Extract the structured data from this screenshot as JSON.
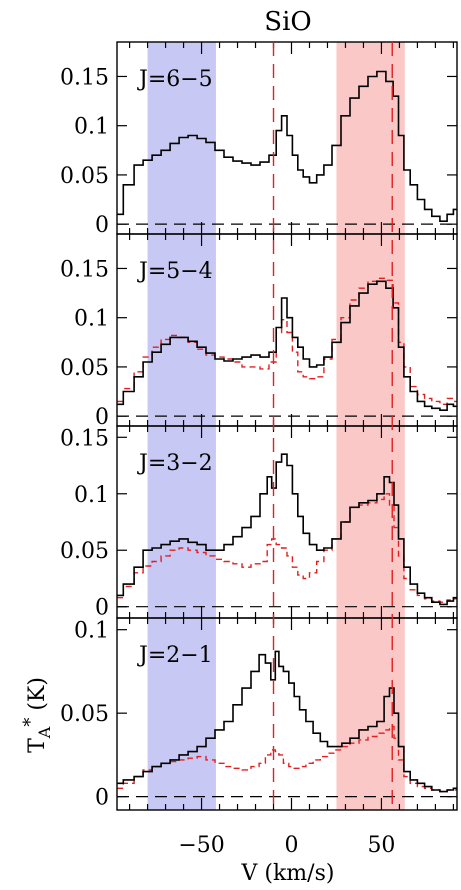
{
  "chart_data": {
    "type": "line",
    "title": "SiO",
    "xlabel": "V (km/s)",
    "ylabel_main": "T",
    "ylabel_sub": "A",
    "ylabel_sup": "*",
    "ylabel_unit": " (K)",
    "xlim": [
      -97,
      92
    ],
    "x_ticks": [
      -50,
      0,
      50
    ],
    "x_tick_labels": [
      "−50",
      "0",
      "50"
    ],
    "colors": {
      "black_series": "#000000",
      "red_series": "#e02020",
      "blue_band": "#c8c8f4",
      "red_band": "#fbc8c8",
      "vline": "#e02020",
      "baseline": "#000000"
    },
    "bands": [
      {
        "name": "blue-wing",
        "x": [
          -80,
          -42
        ],
        "color": "#c8c8f4"
      },
      {
        "name": "red-wing",
        "x": [
          25,
          63
        ],
        "color": "#fbc8c8"
      }
    ],
    "vlines": [
      -10,
      56
    ],
    "panels": [
      {
        "label": "J=6−5",
        "ylim": [
          -0.01,
          0.185
        ],
        "y_ticks": [
          0,
          0.05,
          0.1,
          0.15
        ],
        "y_tick_labels": [
          "0",
          "0.05",
          "0.1",
          "0.15"
        ],
        "black": {
          "x": [
            -97,
            -90,
            -85,
            -80,
            -75,
            -70,
            -65,
            -60,
            -55,
            -50,
            -45,
            -40,
            -35,
            -30,
            -25,
            -20,
            -15,
            -10,
            -7,
            -4,
            -1,
            2,
            5,
            8,
            12,
            16,
            20,
            25,
            30,
            35,
            40,
            45,
            50,
            55,
            58,
            61,
            64,
            68,
            72,
            76,
            80,
            85,
            88,
            92
          ],
          "y": [
            0.01,
            0.04,
            0.06,
            0.065,
            0.07,
            0.075,
            0.082,
            0.088,
            0.09,
            0.087,
            0.083,
            0.075,
            0.068,
            0.064,
            0.062,
            0.06,
            0.063,
            0.07,
            0.095,
            0.11,
            0.09,
            0.07,
            0.055,
            0.048,
            0.042,
            0.05,
            0.06,
            0.08,
            0.11,
            0.128,
            0.14,
            0.15,
            0.155,
            0.145,
            0.13,
            0.09,
            0.055,
            0.04,
            0.025,
            0.015,
            0.008,
            0.003,
            0.01,
            0.015
          ]
        }
      },
      {
        "label": "J=5−4",
        "ylim": [
          -0.01,
          0.185
        ],
        "y_ticks": [
          0,
          0.05,
          0.1,
          0.15
        ],
        "y_tick_labels": [
          "0",
          "0.05",
          "0.1",
          "0.15"
        ],
        "black": {
          "x": [
            -97,
            -90,
            -85,
            -80,
            -75,
            -70,
            -65,
            -60,
            -55,
            -50,
            -45,
            -40,
            -35,
            -30,
            -25,
            -20,
            -15,
            -10,
            -7,
            -4,
            -1,
            2,
            5,
            8,
            12,
            16,
            20,
            25,
            30,
            35,
            40,
            45,
            50,
            55,
            58,
            61,
            64,
            68,
            72,
            76,
            80,
            85,
            88,
            92
          ],
          "y": [
            0.012,
            0.025,
            0.04,
            0.055,
            0.065,
            0.073,
            0.08,
            0.08,
            0.076,
            0.07,
            0.064,
            0.058,
            0.056,
            0.058,
            0.06,
            0.062,
            0.06,
            0.065,
            0.09,
            0.12,
            0.1,
            0.08,
            0.07,
            0.058,
            0.05,
            0.052,
            0.06,
            0.075,
            0.095,
            0.112,
            0.125,
            0.134,
            0.137,
            0.13,
            0.11,
            0.07,
            0.04,
            0.025,
            0.015,
            0.01,
            0.008,
            0.006,
            0.012,
            0.01
          ]
        },
        "red": {
          "x": [
            -97,
            -90,
            -85,
            -80,
            -75,
            -70,
            -65,
            -60,
            -55,
            -50,
            -45,
            -40,
            -35,
            -30,
            -25,
            -20,
            -15,
            -10,
            -7,
            -4,
            -1,
            2,
            5,
            8,
            12,
            16,
            20,
            25,
            30,
            35,
            40,
            45,
            50,
            55,
            58,
            61,
            64,
            68,
            72,
            76,
            80,
            85,
            88,
            92
          ],
          "y": [
            0.015,
            0.028,
            0.045,
            0.06,
            0.07,
            0.078,
            0.082,
            0.08,
            0.075,
            0.068,
            0.062,
            0.06,
            0.058,
            0.055,
            0.05,
            0.05,
            0.048,
            0.055,
            0.085,
            0.098,
            0.085,
            0.065,
            0.045,
            0.04,
            0.038,
            0.04,
            0.058,
            0.078,
            0.1,
            0.118,
            0.13,
            0.137,
            0.14,
            0.138,
            0.115,
            0.075,
            0.05,
            0.03,
            0.022,
            0.018,
            0.015,
            0.012,
            0.018,
            0.015
          ]
        }
      },
      {
        "label": "J=3−2",
        "ylim": [
          -0.01,
          0.16
        ],
        "y_ticks": [
          0,
          0.05,
          0.1,
          0.15
        ],
        "y_tick_labels": [
          "0",
          "0.05",
          "0.1",
          "0.15"
        ],
        "black": {
          "x": [
            -97,
            -90,
            -85,
            -80,
            -75,
            -70,
            -65,
            -60,
            -55,
            -50,
            -45,
            -40,
            -35,
            -30,
            -25,
            -20,
            -15,
            -12,
            -10,
            -7,
            -4,
            -1,
            2,
            5,
            8,
            12,
            16,
            20,
            25,
            30,
            35,
            40,
            45,
            50,
            53,
            56,
            58,
            61,
            64,
            68,
            72,
            76,
            80,
            85,
            88,
            92
          ],
          "y": [
            0.01,
            0.02,
            0.035,
            0.05,
            0.052,
            0.055,
            0.058,
            0.06,
            0.057,
            0.055,
            0.05,
            0.05,
            0.055,
            0.062,
            0.07,
            0.08,
            0.1,
            0.115,
            0.105,
            0.128,
            0.135,
            0.125,
            0.1,
            0.08,
            0.065,
            0.055,
            0.05,
            0.052,
            0.06,
            0.075,
            0.088,
            0.092,
            0.094,
            0.1,
            0.115,
            0.11,
            0.09,
            0.06,
            0.035,
            0.02,
            0.012,
            0.008,
            0.004,
            0.002,
            0.005,
            0.008
          ]
        },
        "red": {
          "x": [
            -97,
            -90,
            -85,
            -80,
            -75,
            -70,
            -65,
            -60,
            -55,
            -50,
            -45,
            -40,
            -35,
            -30,
            -25,
            -20,
            -15,
            -12,
            -10,
            -7,
            -4,
            -1,
            2,
            5,
            8,
            12,
            16,
            20,
            25,
            30,
            35,
            40,
            45,
            50,
            53,
            56,
            58,
            61,
            64,
            68,
            72,
            76,
            80,
            85,
            88,
            92
          ],
          "y": [
            0.008,
            0.018,
            0.03,
            0.036,
            0.04,
            0.045,
            0.05,
            0.052,
            0.05,
            0.048,
            0.045,
            0.042,
            0.04,
            0.038,
            0.035,
            0.038,
            0.04,
            0.055,
            0.06,
            0.055,
            0.052,
            0.045,
            0.035,
            0.028,
            0.025,
            0.03,
            0.04,
            0.05,
            0.06,
            0.075,
            0.088,
            0.09,
            0.092,
            0.095,
            0.1,
            0.09,
            0.07,
            0.045,
            0.025,
            0.015,
            0.01,
            0.007,
            0.005,
            0.004,
            0.006,
            0.007
          ]
        }
      },
      {
        "label": "J=2−1",
        "ylim": [
          -0.008,
          0.107
        ],
        "y_ticks": [
          0,
          0.05,
          0.1
        ],
        "y_tick_labels": [
          "0",
          "0.05",
          "0.1"
        ],
        "black": {
          "x": [
            -97,
            -90,
            -85,
            -80,
            -75,
            -70,
            -65,
            -60,
            -55,
            -50,
            -45,
            -40,
            -35,
            -30,
            -25,
            -20,
            -16,
            -13,
            -10,
            -8,
            -6,
            -3,
            0,
            3,
            6,
            10,
            14,
            18,
            22,
            26,
            30,
            35,
            40,
            45,
            50,
            53,
            56,
            58,
            61,
            64,
            68,
            72,
            76,
            80,
            85,
            88,
            92
          ],
          "y": [
            0.008,
            0.01,
            0.012,
            0.015,
            0.018,
            0.02,
            0.022,
            0.025,
            0.027,
            0.03,
            0.035,
            0.04,
            0.045,
            0.055,
            0.065,
            0.075,
            0.085,
            0.08,
            0.07,
            0.087,
            0.078,
            0.075,
            0.068,
            0.06,
            0.052,
            0.045,
            0.038,
            0.033,
            0.03,
            0.03,
            0.032,
            0.035,
            0.04,
            0.042,
            0.045,
            0.06,
            0.065,
            0.05,
            0.03,
            0.015,
            0.01,
            0.008,
            0.006,
            0.004,
            0.003,
            0.004,
            0.005
          ]
        },
        "red": {
          "x": [
            -97,
            -90,
            -85,
            -80,
            -75,
            -70,
            -65,
            -60,
            -55,
            -50,
            -45,
            -40,
            -35,
            -30,
            -25,
            -20,
            -16,
            -13,
            -10,
            -8,
            -6,
            -3,
            0,
            3,
            6,
            10,
            14,
            18,
            22,
            26,
            30,
            35,
            40,
            45,
            50,
            53,
            56,
            58,
            61,
            64,
            68,
            72,
            76,
            80,
            85,
            88,
            92
          ],
          "y": [
            0.005,
            0.008,
            0.012,
            0.016,
            0.018,
            0.02,
            0.021,
            0.022,
            0.023,
            0.024,
            0.022,
            0.02,
            0.018,
            0.017,
            0.016,
            0.018,
            0.02,
            0.025,
            0.028,
            0.027,
            0.025,
            0.02,
            0.018,
            0.017,
            0.018,
            0.02,
            0.022,
            0.024,
            0.026,
            0.028,
            0.03,
            0.032,
            0.034,
            0.036,
            0.038,
            0.04,
            0.042,
            0.035,
            0.022,
            0.012,
            0.008,
            0.006,
            0.005,
            0.004,
            0.003,
            0.004,
            0.004
          ]
        }
      }
    ]
  }
}
